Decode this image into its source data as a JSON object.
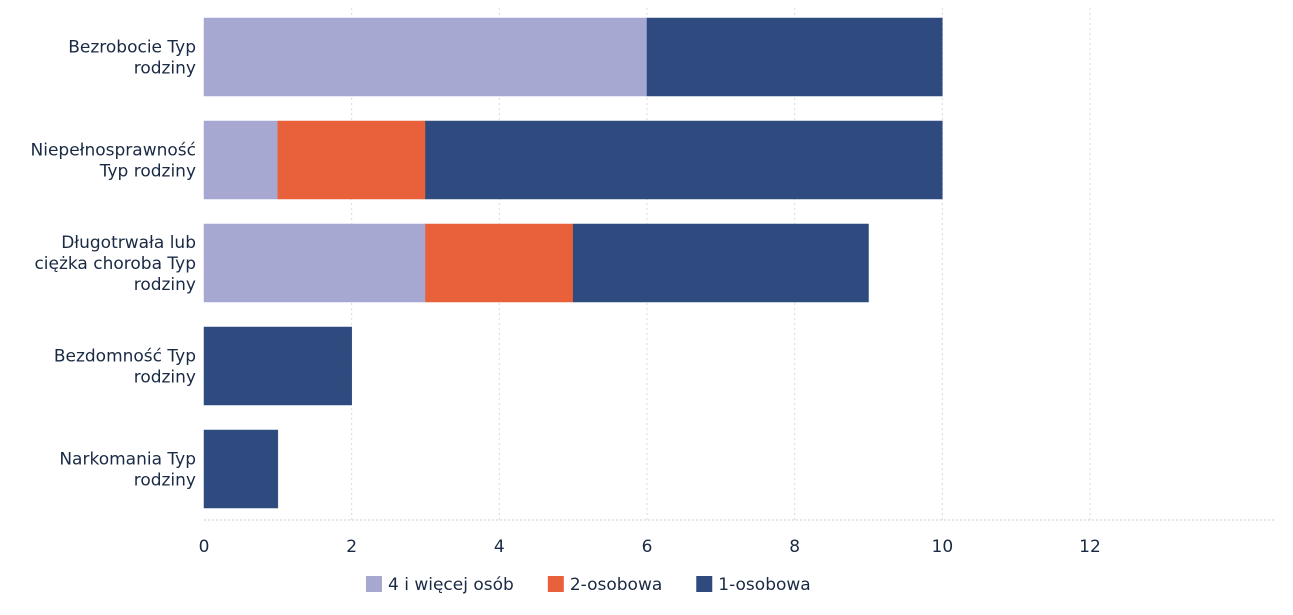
{
  "chart_data": {
    "type": "bar",
    "orientation": "horizontal",
    "stacked": true,
    "categories": [
      "Bezrobocie Typ rodziny",
      "Niepełnosprawność Typ rodziny",
      "Długotrwała lub ciężka choroba Typ rodziny",
      "Bezdomność Typ rodziny",
      "Narkomania Typ rodziny"
    ],
    "category_lines": [
      [
        "Bezrobocie Typ",
        "rodziny"
      ],
      [
        "Niepełnosprawność",
        "Typ rodziny"
      ],
      [
        "Długotrwała lub",
        "ciężka choroba Typ",
        "rodziny"
      ],
      [
        "Bezdomność Typ",
        "rodziny"
      ],
      [
        "Narkomania Typ",
        "rodziny"
      ]
    ],
    "series": [
      {
        "name": "4  i więcej osób",
        "color": "#a6a8d2",
        "values": [
          6,
          1,
          3,
          0,
          0
        ]
      },
      {
        "name": "2-osobowa",
        "color": "#e8613a",
        "values": [
          0,
          2,
          2,
          0,
          0
        ]
      },
      {
        "name": "1-osobowa",
        "color": "#2e4a7e",
        "values": [
          4,
          7,
          4,
          2,
          1
        ]
      }
    ],
    "xlim": [
      0,
      12
    ],
    "xticks": [
      "0",
      "2",
      "4",
      "6",
      "8",
      "10",
      "12"
    ],
    "grid": true,
    "legend_position": "bottom",
    "title": "",
    "xlabel": "",
    "ylabel": ""
  }
}
